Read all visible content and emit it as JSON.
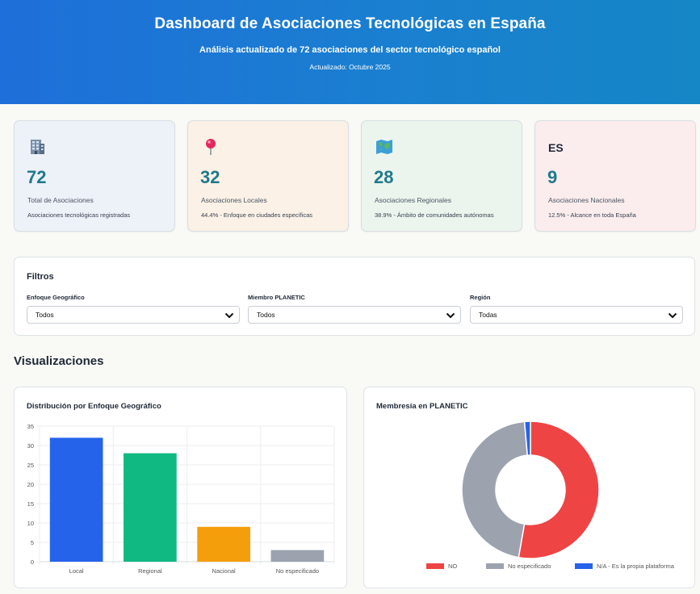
{
  "header": {
    "title": "Dashboard de Asociaciones Tecnológicas en España",
    "subtitle": "Análisis actualizado de 72 asociaciones del sector tecnológico español",
    "updated": "Actualizado: Octubre 2025"
  },
  "stats": [
    {
      "icon": "office-building-icon",
      "value": "72",
      "label": "Total de Asociaciones",
      "desc": "Asociaciones tecnológicas registradas",
      "bg": "#edf1f8"
    },
    {
      "icon": "map-pin-icon",
      "value": "32",
      "label": "Asociaciones Locales",
      "desc": "44.4% - Enfoque en ciudades específicas",
      "bg": "#fbf1e6"
    },
    {
      "icon": "world-map-icon",
      "value": "28",
      "label": "Asociaciones Regionales",
      "desc": "38.9% - Ámbito de comunidades autónomas",
      "bg": "#ebf5ed"
    },
    {
      "icon_text": "ES",
      "value": "9",
      "label": "Asociaciones Nacionales",
      "desc": "12.5% - Alcance en toda España",
      "bg": "#fbeded"
    }
  ],
  "filters": {
    "title": "Filtros",
    "items": [
      {
        "label": "Enfoque Geográfico",
        "value": "Todos"
      },
      {
        "label": "Miembro PLANETIC",
        "value": "Todos"
      },
      {
        "label": "Región",
        "value": "Todas"
      }
    ]
  },
  "visualizations_title": "Visualizaciones",
  "charts": {
    "bar_title": "Distribución por Enfoque Geográfico",
    "donut_title": "Membresía en PLANETIC"
  },
  "chart_data": [
    {
      "type": "bar",
      "title": "Distribución por Enfoque Geográfico",
      "categories": [
        "Local",
        "Regional",
        "Nacional",
        "No especificado"
      ],
      "values": [
        32,
        28,
        9,
        3
      ],
      "colors": [
        "#2563eb",
        "#10b981",
        "#f59e0b",
        "#9ca3af"
      ],
      "ylim": [
        0,
        35
      ],
      "yticks": [
        0,
        5,
        10,
        15,
        20,
        25,
        30,
        35
      ],
      "grid": true
    },
    {
      "type": "pie",
      "title": "Membresía en PLANETIC",
      "labels": [
        "NO",
        "No especificado",
        "N/A - Es la propia plataforma"
      ],
      "values": [
        38,
        33,
        1
      ],
      "colors": [
        "#ef4444",
        "#9ca3af",
        "#2563eb"
      ],
      "donut": true,
      "legend": "bottom"
    }
  ]
}
